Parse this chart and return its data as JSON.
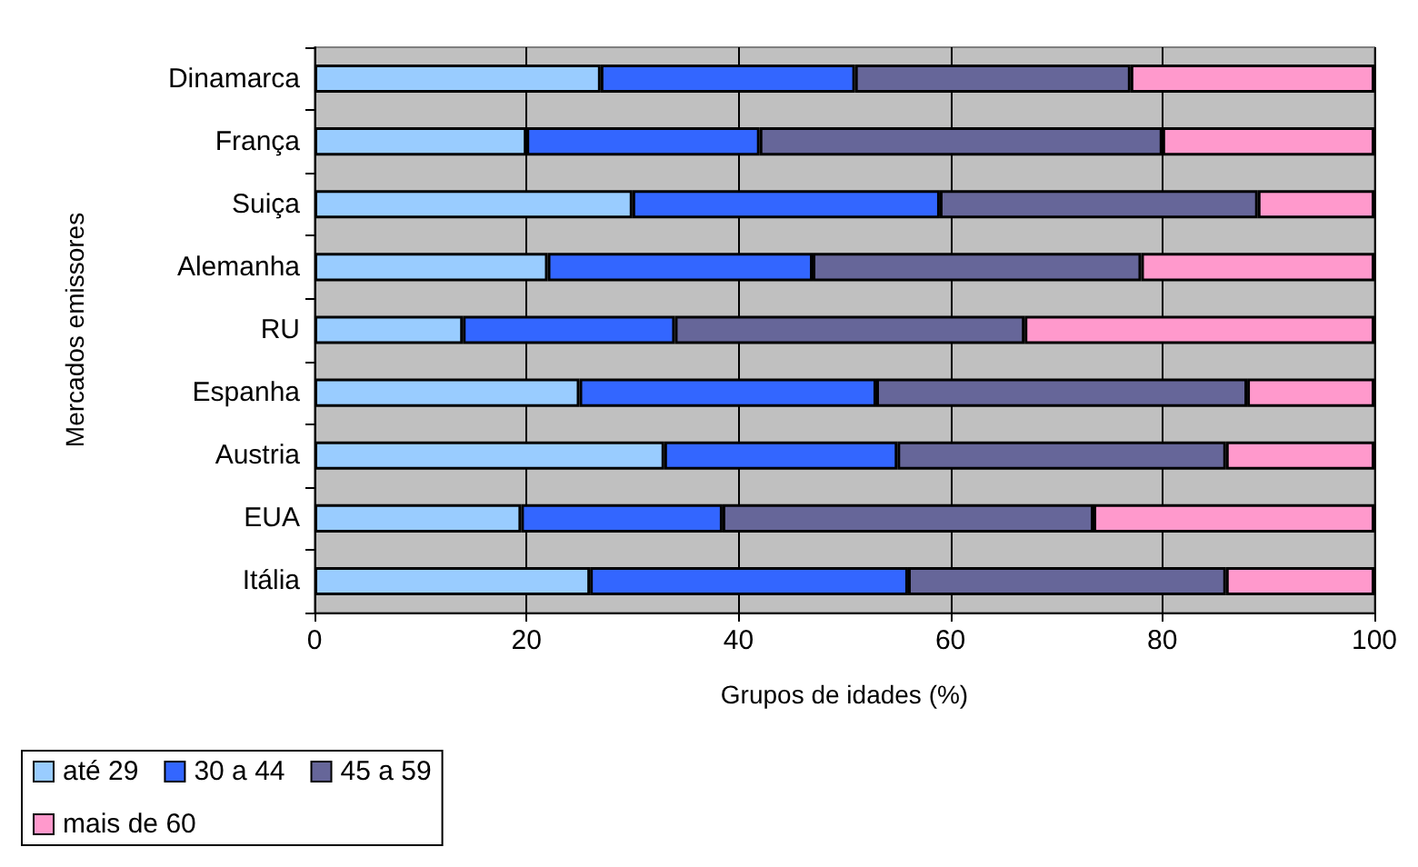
{
  "chart_data": {
    "type": "bar",
    "orientation": "horizontal",
    "stacked": true,
    "xlabel": "Grupos de idades (%)",
    "ylabel": "Mercados emissores",
    "categories": [
      "Dinamarca",
      "França",
      "Suiça",
      "Alemanha",
      "RU",
      "Espanha",
      "Austria",
      "EUA",
      "Itália"
    ],
    "series": [
      {
        "name": "até 29",
        "color": "#99ccff",
        "values": [
          27,
          20,
          30,
          22,
          14,
          25,
          33,
          19.5,
          26
        ]
      },
      {
        "name": "30 a 44",
        "color": "#3366ff",
        "values": [
          24,
          22,
          29,
          25,
          20,
          28,
          22,
          19,
          30
        ]
      },
      {
        "name": "45 a 59",
        "color": "#666699",
        "values": [
          26,
          38,
          30,
          31,
          33,
          35,
          31,
          35,
          30
        ]
      },
      {
        "name": "mais de 60",
        "color": "#ff99cc",
        "values": [
          23,
          20,
          11,
          22,
          33,
          12,
          14,
          26.5,
          14
        ]
      }
    ],
    "xlim": [
      0,
      100
    ],
    "xticks": [
      0,
      20,
      40,
      60,
      80,
      100
    ],
    "grid": "x",
    "legend": "bottom left"
  }
}
